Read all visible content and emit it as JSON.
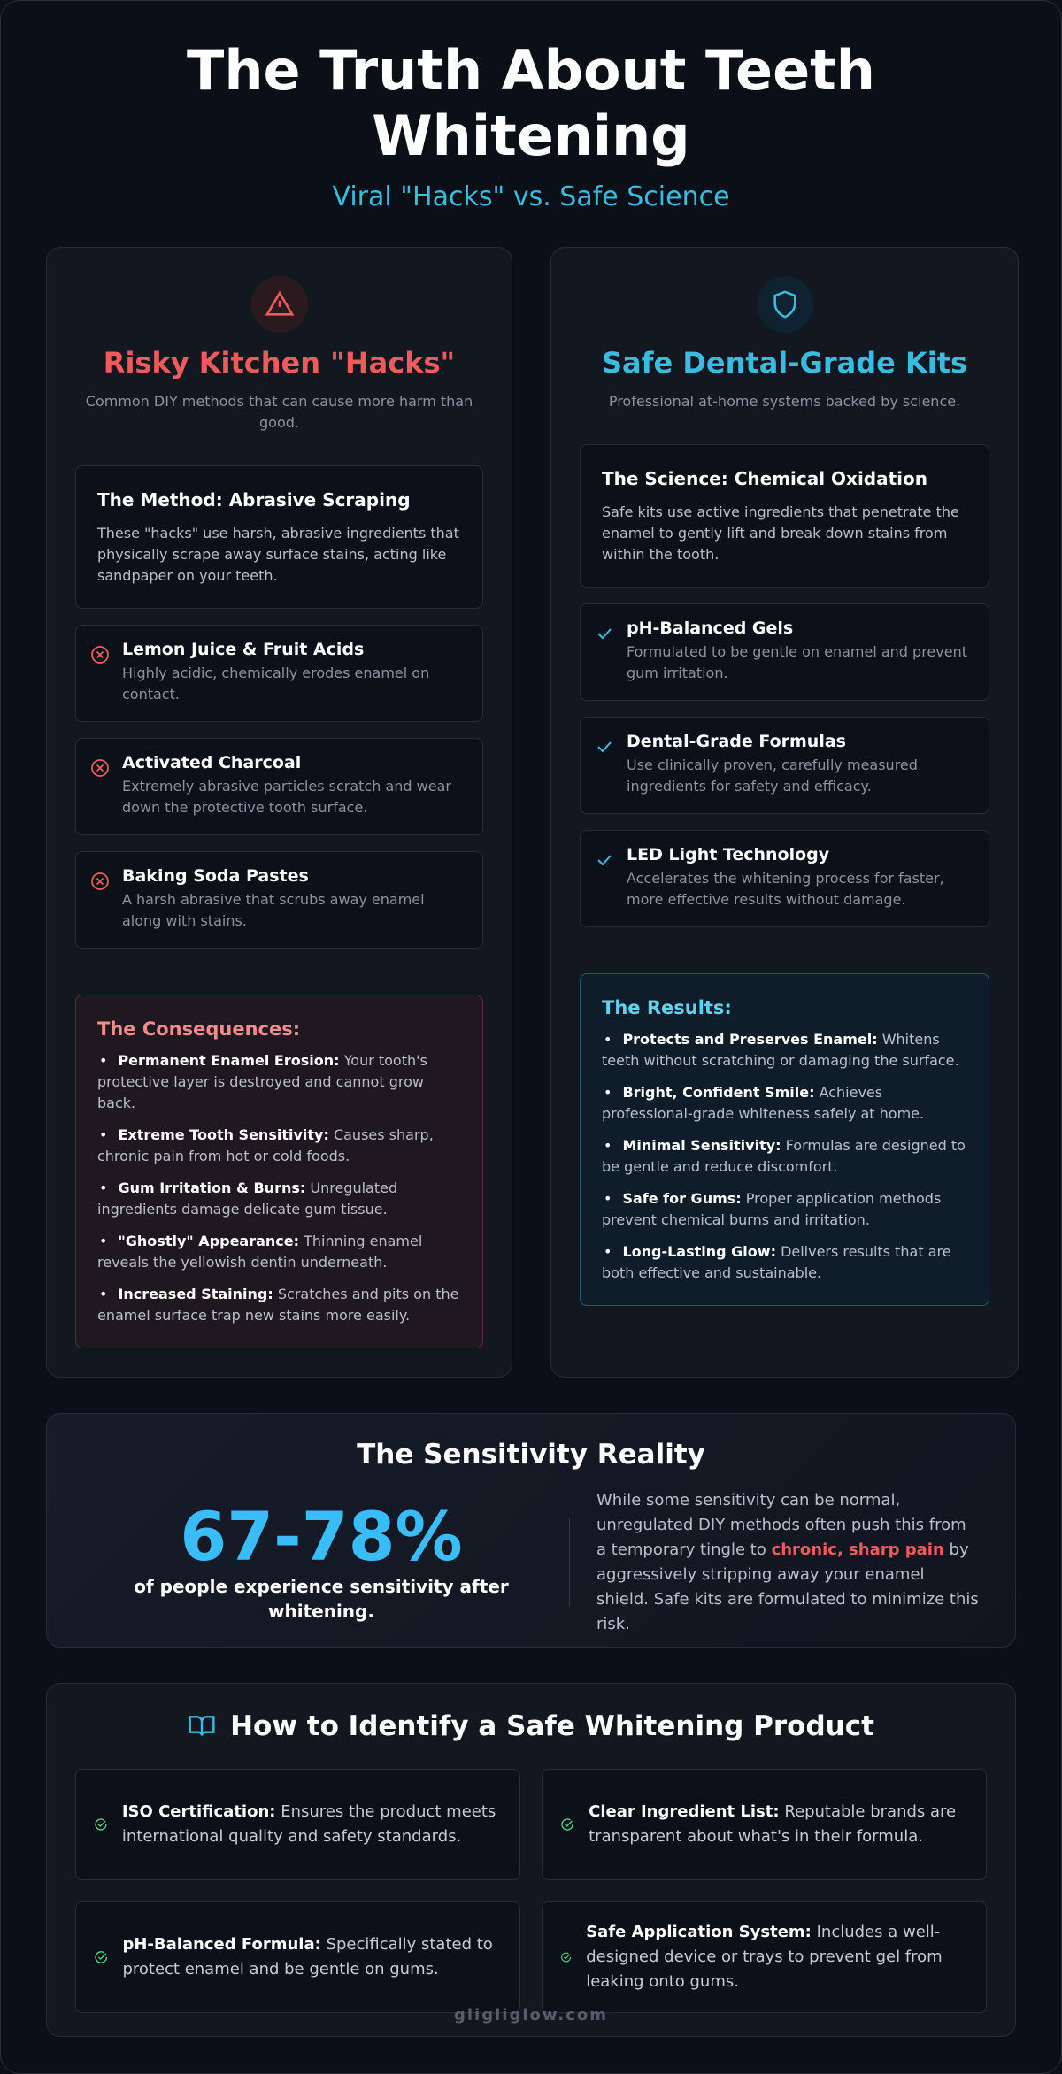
{
  "header": {
    "title": "The Truth About Teeth Whitening",
    "subtitle": "Viral \"Hacks\" vs. Safe Science"
  },
  "risky": {
    "title": "Risky Kitchen \"Hacks\"",
    "subtitle": "Common DIY methods that can cause more harm than good.",
    "method": {
      "title": "The Method: Abrasive Scraping",
      "text": "These \"hacks\" use harsh, abrasive ingredients that physically scrape away surface stains, acting like sandpaper on your teeth."
    },
    "items": [
      {
        "title": "Lemon Juice & Fruit Acids",
        "text": "Highly acidic, chemically erodes enamel on contact."
      },
      {
        "title": "Activated Charcoal",
        "text": "Extremely abrasive particles scratch and wear down the protective tooth surface."
      },
      {
        "title": "Baking Soda Pastes",
        "text": "A harsh abrasive that scrubs away enamel along with stains."
      }
    ],
    "box": {
      "title": "The Consequences:",
      "items": [
        {
          "bold": "Permanent Enamel Erosion:",
          "text": "Your tooth's protective layer is destroyed and cannot grow back."
        },
        {
          "bold": "Extreme Tooth Sensitivity:",
          "text": "Causes sharp, chronic pain from hot or cold foods."
        },
        {
          "bold": "Gum Irritation & Burns:",
          "text": "Unregulated ingredients damage delicate gum tissue."
        },
        {
          "bold": "\"Ghostly\" Appearance:",
          "text": "Thinning enamel reveals the yellowish dentin underneath."
        },
        {
          "bold": "Increased Staining:",
          "text": "Scratches and pits on the enamel surface trap new stains more easily."
        }
      ]
    }
  },
  "safe": {
    "title": "Safe Dental-Grade Kits",
    "subtitle": "Professional at-home systems backed by science.",
    "method": {
      "title": "The Science: Chemical Oxidation",
      "text": "Safe kits use active ingredients that penetrate the enamel to gently lift and break down stains from within the tooth."
    },
    "items": [
      {
        "title": "pH-Balanced Gels",
        "text": "Formulated to be gentle on enamel and prevent gum irritation."
      },
      {
        "title": "Dental-Grade Formulas",
        "text": "Use clinically proven, carefully measured ingredients for safety and efficacy."
      },
      {
        "title": "LED Light Technology",
        "text": "Accelerates the whitening process for faster, more effective results without damage."
      }
    ],
    "box": {
      "title": "The Results:",
      "items": [
        {
          "bold": "Protects and Preserves Enamel:",
          "text": "Whitens teeth without scratching or damaging the surface."
        },
        {
          "bold": "Bright, Confident Smile:",
          "text": "Achieves professional-grade whiteness safely at home."
        },
        {
          "bold": "Minimal Sensitivity:",
          "text": "Formulas are designed to be gentle and reduce discomfort."
        },
        {
          "bold": "Safe for Gums:",
          "text": "Proper application methods prevent chemical burns and irritation."
        },
        {
          "bold": "Long-Lasting Glow:",
          "text": "Delivers results that are both effective and sustainable."
        }
      ]
    }
  },
  "sensitivity": {
    "title": "The Sensitivity Reality",
    "stat": "67-78%",
    "caption": "of people experience sensitivity after whitening.",
    "text_before": "While some sensitivity can be normal, unregulated DIY methods often push this from a temporary tingle to",
    "highlight": "chronic, sharp pain",
    "text_after": "by aggressively stripping away your enamel shield. Safe kits are formulated to minimize this risk."
  },
  "identify": {
    "title": "How to Identify a Safe Whitening Product",
    "items": [
      {
        "bold": "ISO Certification:",
        "text": "Ensures the product meets international quality and safety standards."
      },
      {
        "bold": "Clear Ingredient List:",
        "text": "Reputable brands are transparent about what's in their formula."
      },
      {
        "bold": "pH-Balanced Formula:",
        "text": "Specifically stated to protect enamel and be gentle on gums."
      },
      {
        "bold": "Safe Application System:",
        "text": "Includes a well-designed device or trays to prevent gel from leaking onto gums."
      }
    ]
  },
  "footer": "gligliglow.com"
}
